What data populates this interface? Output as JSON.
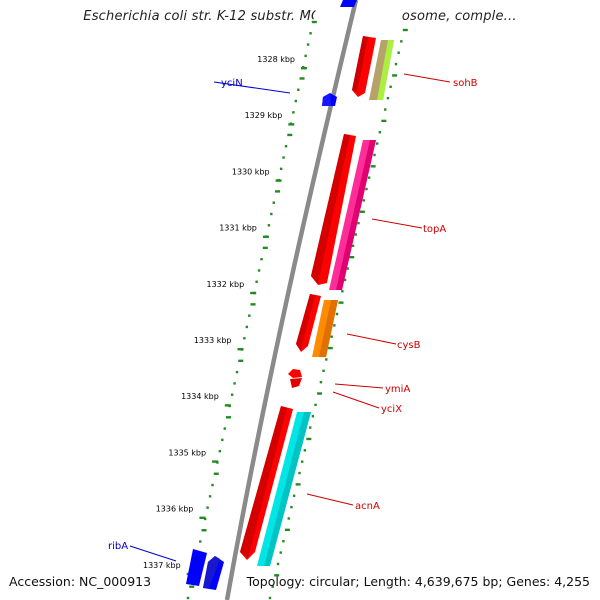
{
  "title": "Escherichia coli str. K-12 substr. MG1655 chromosome, comple...",
  "footer": {
    "accession": "Accession: NC_000913",
    "topology": "Topology: circular; Length: 4,639,675 bp; Genes: 4,255"
  },
  "kbp_ticks": [
    {
      "label": "1328 kbp",
      "row": 0
    },
    {
      "label": "1329 kbp",
      "row": 1
    },
    {
      "label": "1330 kbp",
      "row": 2
    },
    {
      "label": "1331 kbp",
      "row": 3
    },
    {
      "label": "1332 kbp",
      "row": 4
    },
    {
      "label": "1333 kbp",
      "row": 5
    },
    {
      "label": "1334 kbp",
      "row": 6
    },
    {
      "label": "1335 kbp",
      "row": 7
    },
    {
      "label": "1336 kbp",
      "row": 8
    },
    {
      "label": "1337 kbp",
      "row": 9
    }
  ],
  "genes_reverse": [
    {
      "name": "yciN",
      "label_color": "#0000cc",
      "color": "#0000ff"
    },
    {
      "name": "ribA",
      "label_color": "#0000cc",
      "color": "#0000ff"
    }
  ],
  "genes_forward": [
    {
      "name": "sohB",
      "label_color": "#cc0000",
      "color": "#b5a36a"
    },
    {
      "name": "topA",
      "label_color": "#cc0000",
      "color": "#ff2d9a"
    },
    {
      "name": "cysB",
      "label_color": "#cc0000",
      "color": "#ff8c00"
    },
    {
      "name": "ymiA",
      "label_color": "#cc0000",
      "color": "#ff0000"
    },
    {
      "name": "yciX",
      "label_color": "#cc0000",
      "color": "#ff0000"
    },
    {
      "name": "acnA",
      "label_color": "#cc0000",
      "color": "#00e5e5"
    }
  ],
  "colors": {
    "backbone": "#8a8a8a",
    "gc_ticks": "#228b22",
    "cds_forward": "#ff0000",
    "sohB_extra": "#aaf040"
  }
}
